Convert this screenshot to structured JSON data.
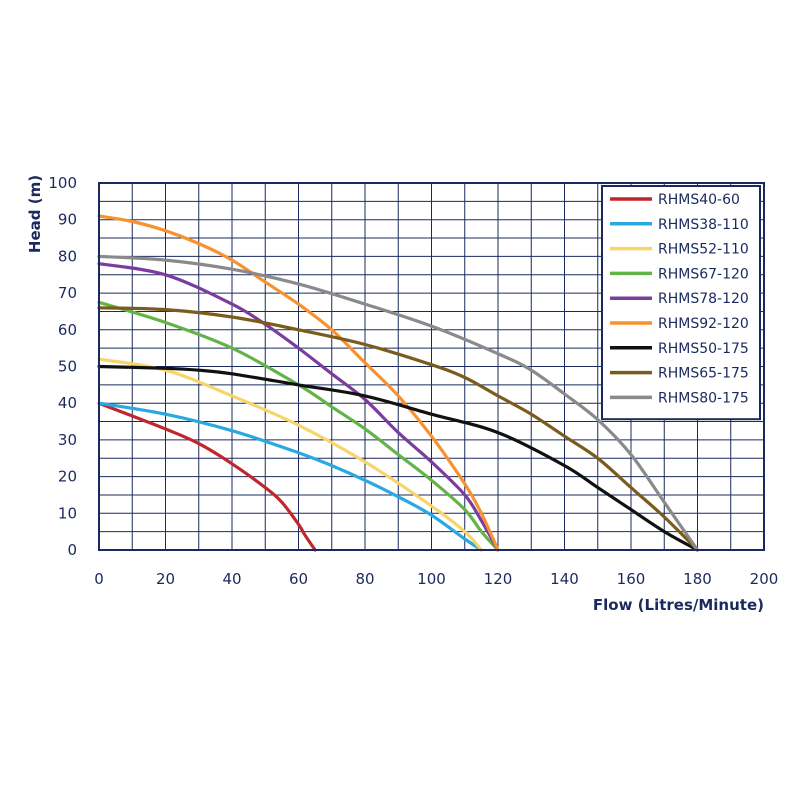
{
  "chart_data": {
    "type": "line",
    "title": "",
    "xlabel": "Flow (Litres/Minute)",
    "ylabel": "Head (m)",
    "xlim": [
      0,
      200
    ],
    "ylim": [
      0,
      100
    ],
    "x_ticks": [
      0,
      20,
      40,
      60,
      80,
      100,
      120,
      140,
      160,
      180,
      200
    ],
    "y_ticks": [
      0,
      10,
      20,
      30,
      40,
      50,
      60,
      70,
      80,
      90,
      100
    ],
    "grid": true,
    "legend_position": "top-right",
    "axis_color": "#1b2a5e",
    "series": [
      {
        "name": "RHMS40-60",
        "color": "#c0272d",
        "x": [
          0,
          10,
          20,
          30,
          40,
          50,
          55,
          60,
          62,
          65
        ],
        "y": [
          40,
          36.5,
          33,
          29,
          23.5,
          17,
          13,
          7,
          4,
          0
        ]
      },
      {
        "name": "RHMS38-110",
        "color": "#29a9e0",
        "x": [
          0,
          20,
          40,
          60,
          70,
          80,
          90,
          100,
          110,
          115
        ],
        "y": [
          40,
          37,
          32.5,
          26.5,
          23,
          19,
          14.5,
          9.5,
          3,
          0
        ]
      },
      {
        "name": "RHMS52-110",
        "color": "#f7d56a",
        "x": [
          0,
          20,
          40,
          60,
          80,
          100,
          110,
          115
        ],
        "y": [
          52,
          49,
          42,
          34,
          24,
          12,
          5,
          0
        ]
      },
      {
        "name": "RHMS67-120",
        "color": "#62b447",
        "x": [
          0,
          20,
          40,
          60,
          70,
          80,
          90,
          100,
          110,
          115,
          120
        ],
        "y": [
          67.5,
          62,
          55,
          45,
          39,
          33,
          26,
          19,
          11,
          5,
          0
        ]
      },
      {
        "name": "RHMS78-120",
        "color": "#7b3d9d",
        "x": [
          0,
          20,
          40,
          50,
          60,
          70,
          80,
          90,
          100,
          110,
          115,
          120
        ],
        "y": [
          78,
          75,
          67,
          61.5,
          55,
          48,
          41,
          32,
          24,
          15,
          8,
          0
        ]
      },
      {
        "name": "RHMS92-120",
        "color": "#f7922e",
        "x": [
          0,
          10,
          20,
          30,
          40,
          50,
          60,
          70,
          80,
          90,
          100,
          110,
          115,
          120
        ],
        "y": [
          91,
          89.5,
          87,
          83.5,
          79,
          73,
          67,
          60,
          51,
          42,
          31,
          18,
          10,
          0
        ]
      },
      {
        "name": "RHMS50-175",
        "color": "#111111",
        "x": [
          0,
          20,
          30,
          40,
          60,
          80,
          100,
          120,
          140,
          150,
          160,
          170,
          180
        ],
        "y": [
          50,
          49.5,
          49,
          48,
          45,
          42,
          37,
          32,
          23,
          17,
          11,
          5,
          0
        ]
      },
      {
        "name": "RHMS65-175",
        "color": "#7a5c1e",
        "x": [
          0,
          20,
          40,
          60,
          80,
          100,
          110,
          120,
          130,
          140,
          150,
          160,
          170,
          180
        ],
        "y": [
          66,
          65.5,
          63.5,
          60,
          56,
          50.5,
          47,
          42,
          37,
          31,
          25,
          17,
          9,
          0
        ]
      },
      {
        "name": "RHMS80-175",
        "color": "#8a8a8a",
        "x": [
          0,
          20,
          40,
          60,
          80,
          100,
          120,
          130,
          140,
          150,
          160,
          170,
          180
        ],
        "y": [
          80,
          79,
          76.5,
          72.5,
          67,
          61,
          53.5,
          49,
          42.5,
          35.5,
          26,
          13,
          0
        ]
      }
    ]
  }
}
